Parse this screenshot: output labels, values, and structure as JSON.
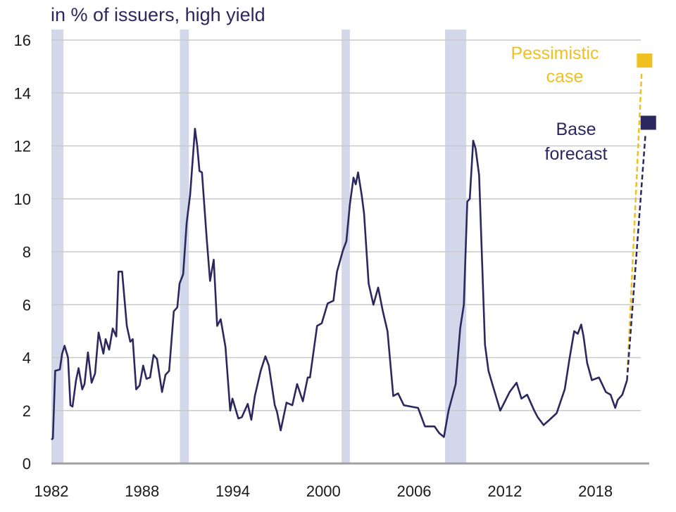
{
  "chart_data": {
    "type": "line",
    "title": "in % of issuers, high yield",
    "xlabel": "",
    "ylabel": "",
    "xlim": [
      1982,
      2021
    ],
    "ylim": [
      0,
      16
    ],
    "grid": true,
    "y_ticks": [
      "0",
      "2",
      "4",
      "6",
      "8",
      "10",
      "12",
      "14",
      "16"
    ],
    "x_ticks": [
      "1982",
      "1988",
      "1994",
      "2000",
      "2006",
      "2012",
      "2018"
    ],
    "x_tick_values": [
      1982,
      1988,
      1994,
      2000,
      2006,
      2012,
      2018
    ],
    "recession_bands": [
      [
        1982.0,
        1982.8
      ],
      [
        1990.5,
        1991.1
      ],
      [
        2001.2,
        2001.75
      ],
      [
        2008.05,
        2009.45
      ]
    ],
    "series": [
      {
        "color": "#2b2860",
        "x": [
          1982.0,
          1982.1,
          1982.25,
          1982.56,
          1982.71,
          1982.87,
          1983.1,
          1983.26,
          1983.4,
          1983.63,
          1983.8,
          1984.04,
          1984.19,
          1984.42,
          1984.66,
          1984.89,
          1985.12,
          1985.44,
          1985.59,
          1985.82,
          1986.06,
          1986.29,
          1986.44,
          1986.68,
          1986.99,
          1987.22,
          1987.38,
          1987.61,
          1987.84,
          1988.07,
          1988.29,
          1988.53,
          1988.76,
          1988.99,
          1989.32,
          1989.55,
          1989.79,
          1990.1,
          1990.33,
          1990.48,
          1990.72,
          1990.95,
          1991.18,
          1991.5,
          1991.65,
          1991.8,
          1991.96,
          1992.27,
          1992.5,
          1992.74,
          1992.97,
          1993.2,
          1993.52,
          1993.83,
          1993.98,
          1994.37,
          1994.6,
          1994.99,
          1995.23,
          1995.46,
          1995.85,
          1996.16,
          1996.39,
          1996.78,
          1996.93,
          1997.17,
          1997.56,
          1997.94,
          1998.26,
          1998.64,
          1998.96,
          1999.11,
          1999.58,
          1999.89,
          2000.28,
          2000.66,
          2000.9,
          2001.29,
          2001.52,
          2001.75,
          2001.99,
          2002.14,
          2002.29,
          2002.53,
          2002.69,
          2002.99,
          2003.31,
          2003.62,
          2003.93,
          2004.24,
          2004.62,
          2004.94,
          2005.32,
          2005.79,
          2006.26,
          2006.72,
          2007.35,
          2007.66,
          2007.97,
          2008.28,
          2008.75,
          2009.05,
          2009.29,
          2009.52,
          2009.68,
          2009.91,
          2010.07,
          2010.3,
          2010.69,
          2010.92,
          2011.23,
          2011.7,
          2012.01,
          2012.32,
          2012.78,
          2013.1,
          2013.48,
          2013.95,
          2014.18,
          2014.57,
          2014.96,
          2015.43,
          2015.97,
          2016.28,
          2016.59,
          2016.83,
          2017.06,
          2017.21,
          2017.45,
          2017.76,
          2018.23,
          2018.69,
          2019.0,
          2019.31,
          2019.47,
          2019.78,
          2020.09
        ],
        "y": [
          0.9,
          0.95,
          3.5,
          3.55,
          4.15,
          4.45,
          4.0,
          2.2,
          2.15,
          3.15,
          3.6,
          2.8,
          3.0,
          4.2,
          3.05,
          3.4,
          4.95,
          4.15,
          4.7,
          4.3,
          5.1,
          4.8,
          7.25,
          7.25,
          5.2,
          4.6,
          4.7,
          2.8,
          2.95,
          3.7,
          3.2,
          3.25,
          4.1,
          3.95,
          2.7,
          3.35,
          3.5,
          5.75,
          5.9,
          6.8,
          7.15,
          9.1,
          10.15,
          12.65,
          12.0,
          11.05,
          11.0,
          8.55,
          6.9,
          7.7,
          5.2,
          5.45,
          4.4,
          2.0,
          2.45,
          1.7,
          1.75,
          2.25,
          1.65,
          2.55,
          3.5,
          4.05,
          3.7,
          2.2,
          1.95,
          1.25,
          2.3,
          2.2,
          3.0,
          2.35,
          3.25,
          3.25,
          5.2,
          5.3,
          6.05,
          6.15,
          7.25,
          8.05,
          8.4,
          9.8,
          10.8,
          10.55,
          11.0,
          10.15,
          9.45,
          6.8,
          6.0,
          6.65,
          5.75,
          5.0,
          2.55,
          2.65,
          2.2,
          2.15,
          2.1,
          1.4,
          1.4,
          1.15,
          1.0,
          2.0,
          3.0,
          5.1,
          6.0,
          9.9,
          10.0,
          12.2,
          11.9,
          10.9,
          4.5,
          3.5,
          2.9,
          2.0,
          2.35,
          2.7,
          3.05,
          2.45,
          2.6,
          2.0,
          1.75,
          1.45,
          1.65,
          1.9,
          2.8,
          3.95,
          5.0,
          4.9,
          5.25,
          4.8,
          3.8,
          3.15,
          3.25,
          2.7,
          2.6,
          2.1,
          2.4,
          2.6,
          3.15
        ]
      }
    ],
    "forecasts": [
      {
        "label_line1": "Pessimistic",
        "label_line2": "case",
        "color": "#f0c020",
        "from": [
          2020.09,
          3.15
        ],
        "to": [
          2021.25,
          15.2
        ]
      },
      {
        "label_line1": "Base",
        "label_line2": "forecast",
        "color": "#2b2860",
        "from": [
          2020.09,
          3.15
        ],
        "to": [
          2021.5,
          12.85
        ]
      }
    ],
    "colors": {
      "line": "#2b2860",
      "recession": "#d3d7ea",
      "grid": "#c9c9c9",
      "axis": "#a0a0a0"
    }
  }
}
